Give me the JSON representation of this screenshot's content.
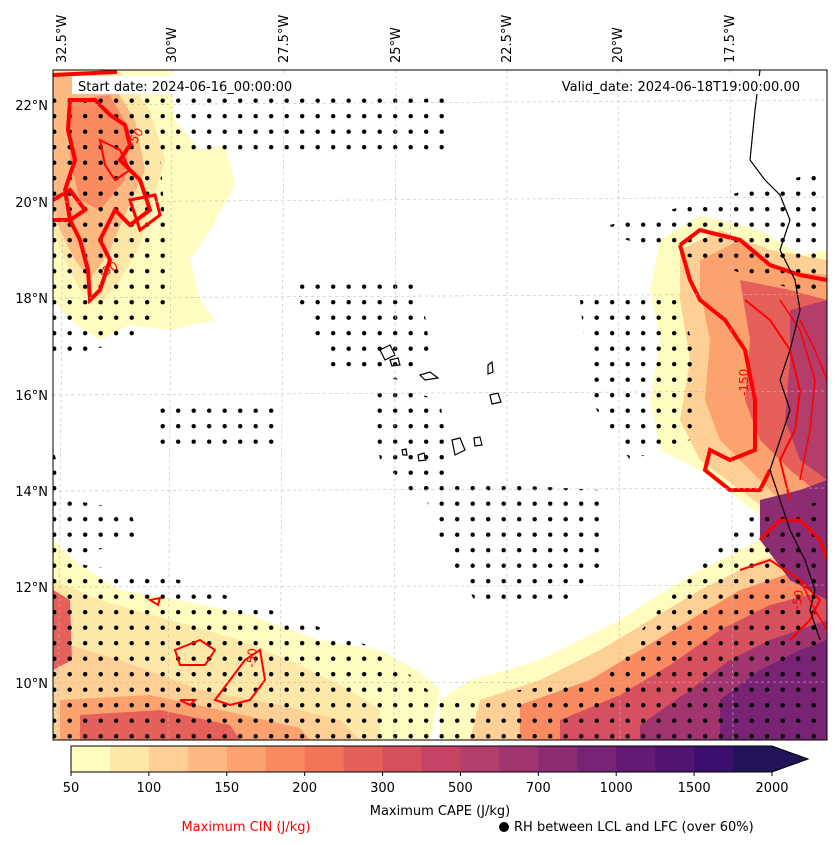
{
  "header": {
    "start_date": "Start date: 2024-06-16_00:00:00",
    "valid_date": "Valid_date: 2024-06-18T19:00:00.00"
  },
  "axes": {
    "lon_labels": [
      "32.5°W",
      "30°W",
      "27.5°W",
      "25°W",
      "22.5°W",
      "20°W",
      "17.5°W"
    ],
    "lat_labels": [
      "22°N",
      "20°N",
      "18°N",
      "16°N",
      "14°N",
      "12°N",
      "10°N"
    ]
  },
  "colorbar": {
    "tick_labels": [
      "50",
      "100",
      "150",
      "200",
      "300",
      "500",
      "700",
      "1000",
      "1500",
      "2000"
    ],
    "label": "Maximum CAPE (J/kg)",
    "colors": [
      "#fefdbf",
      "#fee8a8",
      "#fed096",
      "#fdb982",
      "#fca26f",
      "#fa8b61",
      "#f27459",
      "#e5605a",
      "#d6505f",
      "#c54465",
      "#b33d6b",
      "#a0356f",
      "#8c2c72",
      "#782373",
      "#641a74",
      "#501571",
      "#3b0f6e",
      "#231358"
    ]
  },
  "legend": {
    "cin_label": "Maximum CIN (J/kg)",
    "rh_label": "RH between LCL and LFC (over 60%)",
    "cin_color": "#ff0000"
  },
  "contour_labels": [
    "-50",
    "-150",
    "-50",
    "-50",
    "-50"
  ]
}
